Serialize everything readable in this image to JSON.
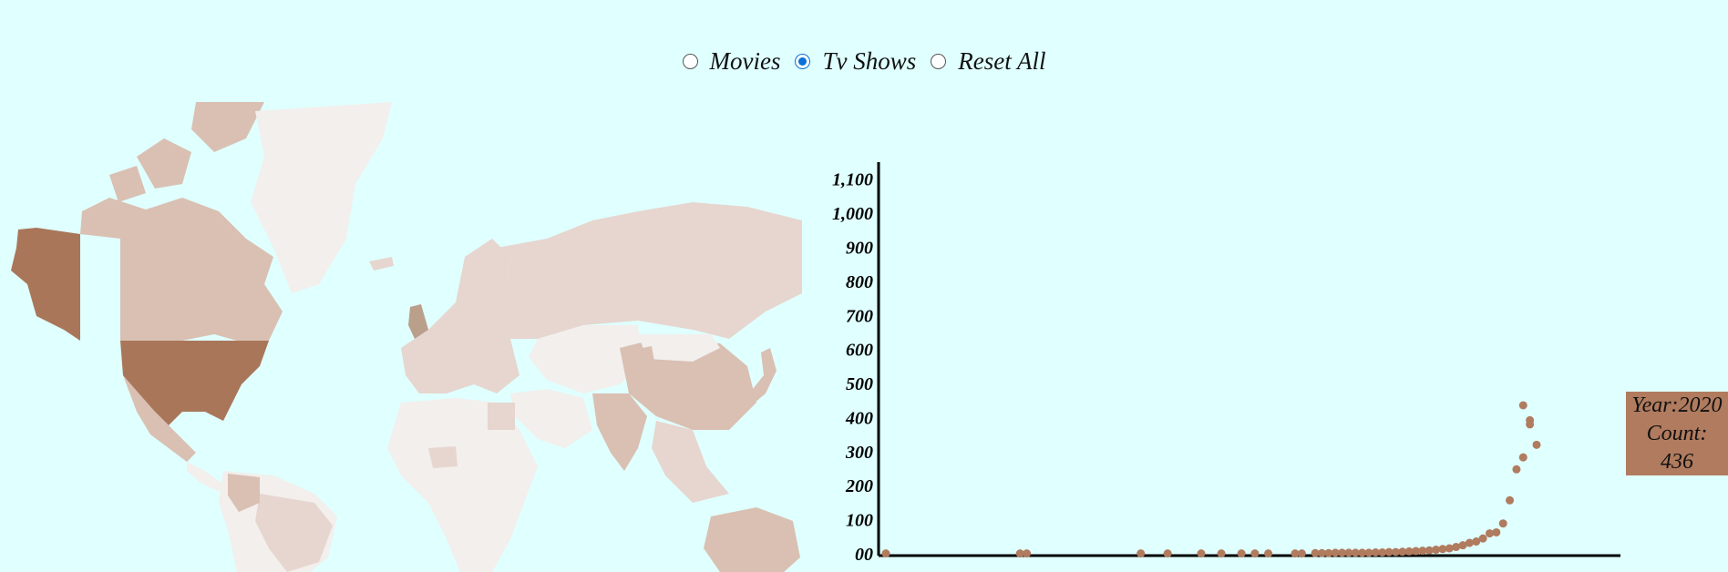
{
  "controls": {
    "options": [
      {
        "label": "Movies",
        "checked": false
      },
      {
        "label": "Tv Shows",
        "checked": true
      },
      {
        "label": "Reset All",
        "checked": false
      }
    ]
  },
  "map": {
    "colors": {
      "high": "#a9765a",
      "mid": "#d9c0b3",
      "low": "#e6d6cf",
      "lowest": "#f2efec"
    }
  },
  "chart_data": {
    "type": "scatter",
    "title": "",
    "xlabel": "",
    "ylabel": "",
    "x": [
      1925,
      1945,
      1946,
      1963,
      1967,
      1972,
      1975,
      1978,
      1980,
      1982,
      1986,
      1987,
      1989,
      1990,
      1991,
      1992,
      1993,
      1994,
      1995,
      1996,
      1997,
      1998,
      1999,
      2000,
      2001,
      2002,
      2003,
      2004,
      2005,
      2006,
      2007,
      2008,
      2009,
      2010,
      2011,
      2012,
      2013,
      2014,
      2015,
      2016,
      2017,
      2018,
      2019,
      2020,
      2021
    ],
    "y": [
      1,
      1,
      1,
      1,
      1,
      1,
      1,
      1,
      1,
      1,
      1,
      1,
      2,
      2,
      2,
      3,
      3,
      3,
      3,
      3,
      3,
      4,
      4,
      5,
      5,
      6,
      7,
      8,
      9,
      10,
      12,
      14,
      16,
      20,
      25,
      32,
      36,
      45,
      60,
      63,
      89,
      157,
      248,
      283,
      380
    ],
    "extra_points": [
      {
        "x": 2021,
        "y": 392
      },
      {
        "x": 2020,
        "y": 436
      },
      {
        "x": 2022,
        "y": 320
      }
    ],
    "y_ticks": [
      "00",
      "100",
      "200",
      "300",
      "400",
      "500",
      "600",
      "700",
      "800",
      "900",
      "1,000",
      "1,100"
    ],
    "ylim": [
      0,
      1150
    ],
    "xlim": [
      1925,
      2022
    ],
    "point_color": "#b07b5e",
    "tooltip": {
      "year_label": "Year:2020",
      "count_label": "Count:",
      "count_value": "436"
    }
  }
}
